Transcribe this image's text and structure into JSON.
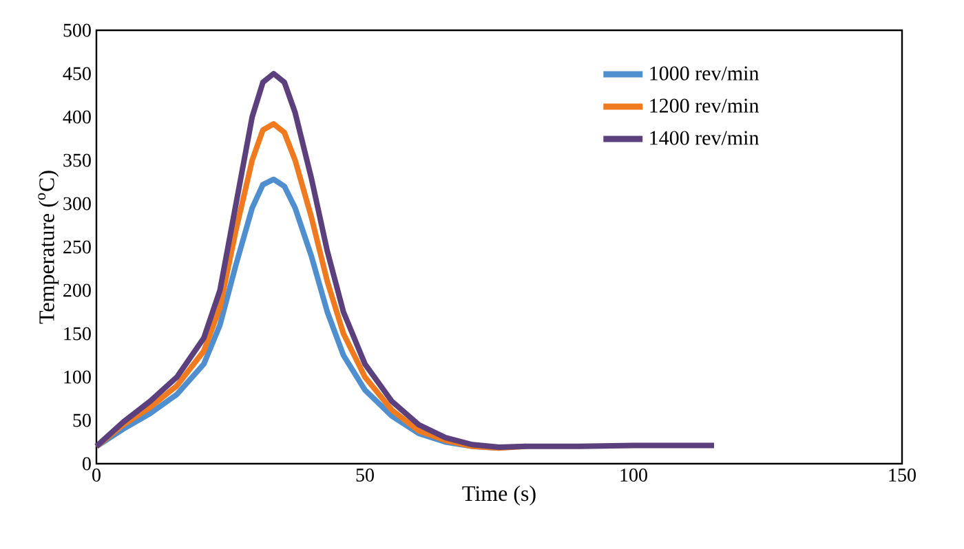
{
  "chart_data": {
    "type": "line",
    "xlabel": "Time (s)",
    "ylabel": "Temperature ($^{o}$C)",
    "xlim": [
      0,
      150
    ],
    "xticks": [
      0,
      50,
      100,
      150
    ],
    "ylim": [
      0,
      500
    ],
    "yticks": [
      0,
      50,
      100,
      150,
      200,
      250,
      300,
      350,
      400,
      450,
      500
    ],
    "grid": false,
    "legend": "top right",
    "marker": "none",
    "line_style": "solid",
    "x": [
      0,
      5,
      10,
      15,
      20,
      23,
      26,
      29,
      31,
      33,
      35,
      37,
      40,
      43,
      46,
      50,
      55,
      60,
      65,
      70,
      75,
      80,
      90,
      100,
      115
    ],
    "series": [
      {
        "name": "1000 rev/min",
        "color": "#4f8fcf",
        "values": [
          20,
          40,
          58,
          80,
          115,
          160,
          230,
          295,
          322,
          328,
          320,
          295,
          240,
          175,
          125,
          85,
          55,
          35,
          25,
          20,
          18,
          null,
          null,
          null,
          null
        ]
      },
      {
        "name": "1200 rev/min",
        "color": "#ef7a1f",
        "values": [
          20,
          45,
          65,
          90,
          130,
          180,
          270,
          350,
          385,
          392,
          382,
          350,
          285,
          210,
          150,
          100,
          62,
          38,
          27,
          20,
          18,
          20,
          null,
          null,
          null
        ]
      },
      {
        "name": "1400 rev/min",
        "color": "#5c3f7d",
        "values": [
          20,
          48,
          72,
          100,
          145,
          200,
          300,
          400,
          440,
          450,
          440,
          405,
          330,
          245,
          175,
          115,
          72,
          45,
          30,
          22,
          19,
          20,
          20,
          21,
          21
        ]
      }
    ]
  }
}
